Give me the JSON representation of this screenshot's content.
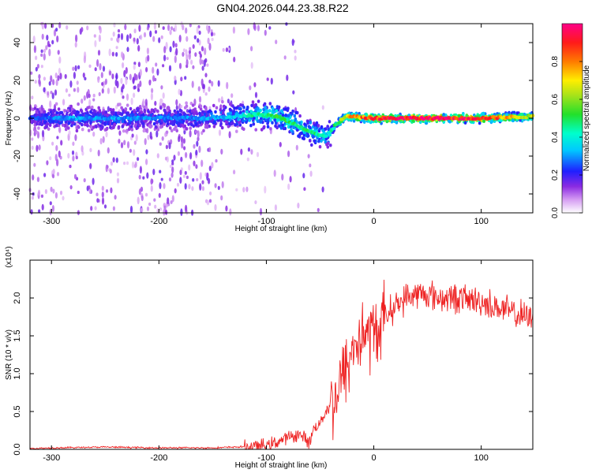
{
  "title": "GN04.2026.044.23.38.R22",
  "colors": {
    "snr_line": "#ee2222",
    "axes": "#000000"
  },
  "chart_data": [
    {
      "type": "heatmap",
      "xlabel": "Height of straight line (km)",
      "ylabel": "Frequency (Hz)",
      "xlim": [
        -320,
        148
      ],
      "ylim": [
        -50,
        50
      ],
      "x_ticks": [
        -300,
        -200,
        -100,
        0,
        100
      ],
      "y_ticks": [
        -40,
        -20,
        0,
        20,
        40
      ],
      "colorbar": {
        "label": "Normalized spectral amplitude",
        "range": [
          0,
          1
        ],
        "ticks": [
          0.0,
          0.2,
          0.4,
          0.6,
          0.8
        ],
        "colormap": "white-violet-blue-cyan-green-yellow-red-magenta"
      },
      "ridge": [
        {
          "x": -320,
          "f": 0,
          "amp": 0.25
        },
        {
          "x": -280,
          "f": 0,
          "amp": 0.3
        },
        {
          "x": -240,
          "f": 0,
          "amp": 0.3
        },
        {
          "x": -200,
          "f": 0,
          "amp": 0.28
        },
        {
          "x": -160,
          "f": 0,
          "amp": 0.3
        },
        {
          "x": -130,
          "f": 1,
          "amp": 0.35
        },
        {
          "x": -110,
          "f": 2,
          "amp": 0.45
        },
        {
          "x": -90,
          "f": 1,
          "amp": 0.5
        },
        {
          "x": -70,
          "f": -4,
          "amp": 0.45
        },
        {
          "x": -55,
          "f": -8,
          "amp": 0.45
        },
        {
          "x": -45,
          "f": -10,
          "amp": 0.4
        },
        {
          "x": -35,
          "f": -3,
          "amp": 0.5
        },
        {
          "x": -25,
          "f": 1,
          "amp": 0.7
        },
        {
          "x": 0,
          "f": 0,
          "amp": 0.9
        },
        {
          "x": 50,
          "f": 0,
          "amp": 0.95
        },
        {
          "x": 100,
          "f": 0,
          "amp": 0.9
        },
        {
          "x": 148,
          "f": 1,
          "amp": 0.6
        }
      ]
    },
    {
      "type": "line",
      "xlabel": "Height of straight line (km)",
      "ylabel": "SNR (10 * v/v)",
      "y_multiplier": "(x10⁴)",
      "xlim": [
        -320,
        148
      ],
      "ylim": [
        0,
        2.5
      ],
      "x_ticks": [
        -300,
        -200,
        -100,
        0,
        100
      ],
      "y_ticks": [
        0.0,
        0.5,
        1.0,
        1.5,
        2.0
      ],
      "series": [
        {
          "x": [
            -320,
            -300,
            -250,
            -200,
            -150,
            -130,
            -110,
            -100,
            -90,
            -80,
            -70,
            -60,
            -55,
            -50,
            -45,
            -40,
            -35,
            -30,
            -25,
            -20,
            -15,
            -10,
            -5,
            0,
            10,
            20,
            30,
            40,
            50,
            60,
            80,
            100,
            120,
            130,
            140,
            148
          ],
          "y": [
            0.01,
            0.02,
            0.03,
            0.02,
            0.02,
            0.03,
            0.04,
            0.05,
            0.1,
            0.15,
            0.2,
            0.1,
            0.3,
            0.35,
            0.5,
            0.6,
            0.7,
            0.9,
            1.1,
            1.3,
            1.45,
            1.5,
            1.55,
            1.5,
            1.75,
            1.9,
            2.0,
            2.05,
            2.05,
            2.0,
            2.0,
            1.95,
            1.85,
            1.8,
            1.75,
            1.7
          ]
        }
      ]
    }
  ]
}
